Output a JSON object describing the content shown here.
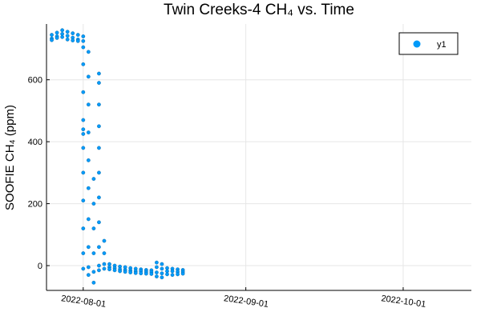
{
  "chart_data": {
    "type": "scatter",
    "title": "Twin Creeks-4 CH₄ vs. Time",
    "xlabel": "",
    "ylabel": "SOOFIE CH₄ (ppm)",
    "x_type": "date",
    "xlim": [
      "2022-07-25",
      "2022-10-14"
    ],
    "ylim": [
      -80,
      780
    ],
    "x_ticks": [
      "2022-08-01",
      "2022-09-01",
      "2022-10-01"
    ],
    "y_ticks": [
      0,
      200,
      400,
      600
    ],
    "grid": true,
    "legend_position": "top-right",
    "series": [
      {
        "name": "y1",
        "color": "#009af9",
        "points": [
          [
            "2022-07-26",
            733
          ],
          [
            "2022-07-26",
            745
          ],
          [
            "2022-07-26",
            728
          ],
          [
            "2022-07-27",
            740
          ],
          [
            "2022-07-27",
            752
          ],
          [
            "2022-07-27",
            735
          ],
          [
            "2022-07-28",
            748
          ],
          [
            "2022-07-28",
            760
          ],
          [
            "2022-07-28",
            738
          ],
          [
            "2022-07-29",
            742
          ],
          [
            "2022-07-29",
            755
          ],
          [
            "2022-07-29",
            730
          ],
          [
            "2022-07-30",
            736
          ],
          [
            "2022-07-30",
            750
          ],
          [
            "2022-07-30",
            727
          ],
          [
            "2022-07-31",
            730
          ],
          [
            "2022-07-31",
            745
          ],
          [
            "2022-07-31",
            725
          ],
          [
            "2022-08-01",
            740
          ],
          [
            "2022-08-01",
            725
          ],
          [
            "2022-08-01",
            705
          ],
          [
            "2022-08-01",
            650
          ],
          [
            "2022-08-01",
            560
          ],
          [
            "2022-08-01",
            470
          ],
          [
            "2022-08-01",
            440
          ],
          [
            "2022-08-01",
            425
          ],
          [
            "2022-08-01",
            380
          ],
          [
            "2022-08-01",
            300
          ],
          [
            "2022-08-01",
            210
          ],
          [
            "2022-08-01",
            120
          ],
          [
            "2022-08-01",
            40
          ],
          [
            "2022-08-01",
            -10
          ],
          [
            "2022-08-02",
            690
          ],
          [
            "2022-08-02",
            610
          ],
          [
            "2022-08-02",
            520
          ],
          [
            "2022-08-02",
            430
          ],
          [
            "2022-08-02",
            340
          ],
          [
            "2022-08-02",
            250
          ],
          [
            "2022-08-02",
            150
          ],
          [
            "2022-08-02",
            60
          ],
          [
            "2022-08-02",
            -5
          ],
          [
            "2022-08-02",
            -30
          ],
          [
            "2022-08-03",
            280
          ],
          [
            "2022-08-03",
            200
          ],
          [
            "2022-08-03",
            120
          ],
          [
            "2022-08-03",
            40
          ],
          [
            "2022-08-03",
            -20
          ],
          [
            "2022-08-03",
            -55
          ],
          [
            "2022-08-04",
            620
          ],
          [
            "2022-08-04",
            590
          ],
          [
            "2022-08-04",
            520
          ],
          [
            "2022-08-04",
            450
          ],
          [
            "2022-08-04",
            380
          ],
          [
            "2022-08-04",
            300
          ],
          [
            "2022-08-04",
            220
          ],
          [
            "2022-08-04",
            140
          ],
          [
            "2022-08-04",
            60
          ],
          [
            "2022-08-04",
            0
          ],
          [
            "2022-08-04",
            -15
          ],
          [
            "2022-08-05",
            80
          ],
          [
            "2022-08-05",
            40
          ],
          [
            "2022-08-05",
            5
          ],
          [
            "2022-08-05",
            -10
          ],
          [
            "2022-08-06",
            5
          ],
          [
            "2022-08-06",
            -5
          ],
          [
            "2022-08-06",
            -12
          ],
          [
            "2022-08-07",
            0
          ],
          [
            "2022-08-07",
            -8
          ],
          [
            "2022-08-07",
            -15
          ],
          [
            "2022-08-08",
            -3
          ],
          [
            "2022-08-08",
            -12
          ],
          [
            "2022-08-08",
            -18
          ],
          [
            "2022-08-09",
            -5
          ],
          [
            "2022-08-09",
            -14
          ],
          [
            "2022-08-09",
            -20
          ],
          [
            "2022-08-10",
            -8
          ],
          [
            "2022-08-10",
            -16
          ],
          [
            "2022-08-10",
            -22
          ],
          [
            "2022-08-11",
            -10
          ],
          [
            "2022-08-11",
            -18
          ],
          [
            "2022-08-11",
            -24
          ],
          [
            "2022-08-12",
            -12
          ],
          [
            "2022-08-12",
            -18
          ],
          [
            "2022-08-12",
            -25
          ],
          [
            "2022-08-13",
            -14
          ],
          [
            "2022-08-13",
            -20
          ],
          [
            "2022-08-13",
            -26
          ],
          [
            "2022-08-14",
            -15
          ],
          [
            "2022-08-14",
            -21
          ],
          [
            "2022-08-14",
            -27
          ],
          [
            "2022-08-15",
            10
          ],
          [
            "2022-08-15",
            -5
          ],
          [
            "2022-08-15",
            -22
          ],
          [
            "2022-08-15",
            -35
          ],
          [
            "2022-08-16",
            5
          ],
          [
            "2022-08-16",
            -10
          ],
          [
            "2022-08-16",
            -25
          ],
          [
            "2022-08-16",
            -38
          ],
          [
            "2022-08-17",
            -8
          ],
          [
            "2022-08-17",
            -18
          ],
          [
            "2022-08-17",
            -28
          ],
          [
            "2022-08-18",
            -10
          ],
          [
            "2022-08-18",
            -18
          ],
          [
            "2022-08-18",
            -30
          ],
          [
            "2022-08-19",
            -12
          ],
          [
            "2022-08-19",
            -20
          ],
          [
            "2022-08-19",
            -28
          ],
          [
            "2022-08-20",
            -14
          ],
          [
            "2022-08-20",
            -20
          ],
          [
            "2022-08-20",
            -26
          ]
        ]
      }
    ]
  }
}
